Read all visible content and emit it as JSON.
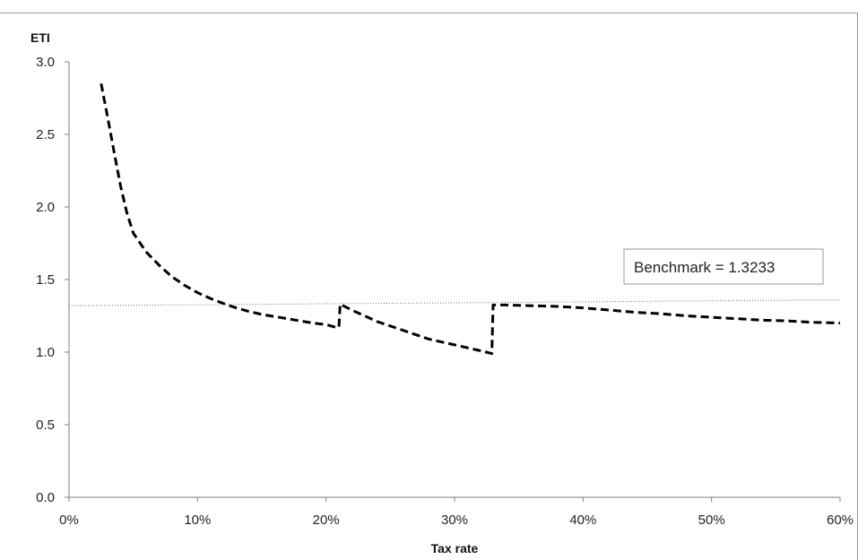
{
  "chart_data": {
    "type": "line",
    "title": "",
    "xlabel": "Tax rate",
    "ylabel": "ETI",
    "xlim": [
      0,
      60
    ],
    "ylim": [
      0,
      3.0
    ],
    "x_ticks": [
      0,
      10,
      20,
      30,
      40,
      50,
      60
    ],
    "x_tick_labels": [
      "0%",
      "10%",
      "20%",
      "30%",
      "40%",
      "50%",
      "60%"
    ],
    "y_ticks": [
      0,
      0.5,
      1.0,
      1.5,
      2.0,
      2.5,
      3.0
    ],
    "y_tick_labels": [
      "0.0",
      "0.5",
      "1.0",
      "1.5",
      "2.0",
      "2.5",
      "3.0"
    ],
    "grid": false,
    "legend": "none",
    "series": [
      {
        "style": "dashed",
        "color": "#000000",
        "points": [
          [
            2.5,
            2.85
          ],
          [
            3.0,
            2.62
          ],
          [
            3.5,
            2.38
          ],
          [
            4.0,
            2.15
          ],
          [
            4.5,
            1.96
          ],
          [
            5.0,
            1.82
          ],
          [
            6.0,
            1.69
          ],
          [
            7.0,
            1.6
          ],
          [
            8.0,
            1.52
          ],
          [
            9.0,
            1.46
          ],
          [
            10.0,
            1.41
          ],
          [
            11.0,
            1.37
          ],
          [
            12.0,
            1.335
          ],
          [
            13.0,
            1.305
          ],
          [
            14.0,
            1.28
          ],
          [
            15.0,
            1.26
          ],
          [
            16.0,
            1.245
          ],
          [
            17.0,
            1.23
          ],
          [
            18.0,
            1.215
          ],
          [
            19.0,
            1.2
          ],
          [
            20.0,
            1.19
          ],
          [
            20.8,
            1.17
          ],
          [
            21.0,
            1.17
          ],
          [
            21.1,
            1.33
          ],
          [
            22.0,
            1.29
          ],
          [
            23.0,
            1.25
          ],
          [
            24.0,
            1.21
          ],
          [
            25.0,
            1.18
          ],
          [
            26.0,
            1.15
          ],
          [
            27.0,
            1.12
          ],
          [
            28.0,
            1.09
          ],
          [
            29.0,
            1.07
          ],
          [
            30.0,
            1.05
          ],
          [
            31.0,
            1.03
          ],
          [
            32.0,
            1.01
          ],
          [
            32.9,
            0.99
          ],
          [
            33.0,
            1.325
          ],
          [
            34.0,
            1.325
          ],
          [
            36.0,
            1.32
          ],
          [
            38.0,
            1.315
          ],
          [
            40.0,
            1.305
          ],
          [
            42.0,
            1.29
          ],
          [
            44.0,
            1.275
          ],
          [
            46.0,
            1.265
          ],
          [
            48.0,
            1.25
          ],
          [
            50.0,
            1.24
          ],
          [
            52.0,
            1.23
          ],
          [
            54.0,
            1.22
          ],
          [
            56.0,
            1.215
          ],
          [
            58.0,
            1.205
          ],
          [
            60.0,
            1.2
          ]
        ]
      },
      {
        "style": "dotted",
        "color": "#777777",
        "points": [
          [
            0,
            1.32
          ],
          [
            60,
            1.36
          ]
        ]
      }
    ],
    "annotations": [
      {
        "text": "Benchmark = 1.3233"
      }
    ]
  }
}
